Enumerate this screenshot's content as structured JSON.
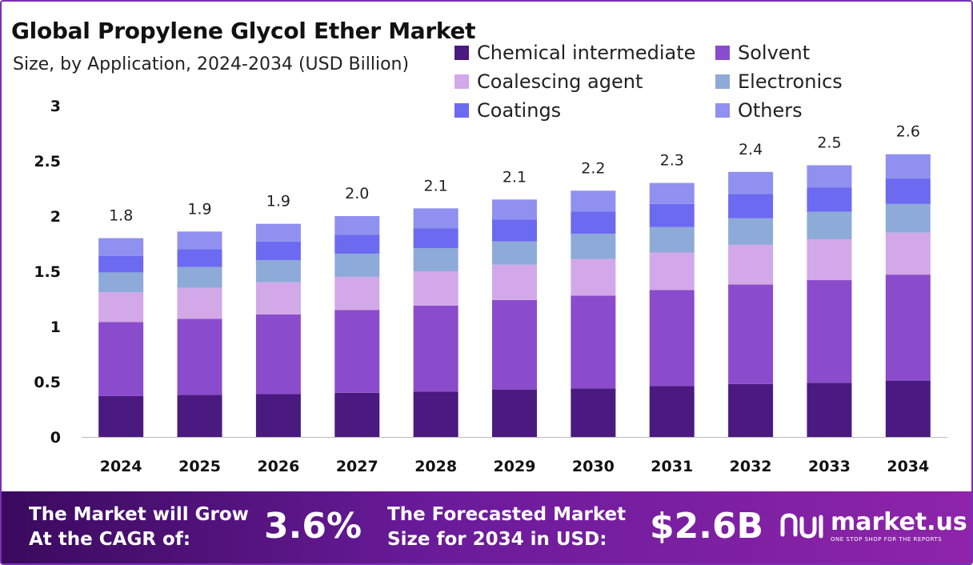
{
  "header": {
    "title": "Global Propylene Glycol Ether Market",
    "subtitle": "Size, by Application, 2024-2034 (USD Billion)"
  },
  "chart_data": {
    "type": "bar",
    "stacked": true,
    "title": "Global Propylene Glycol Ether Market",
    "subtitle": "Size, by Application, 2024-2034 (USD Billion)",
    "xlabel": "",
    "ylabel": "USD Billion",
    "ylim": [
      0,
      3
    ],
    "yticks": [
      "0",
      "0.5",
      "1",
      "1.5",
      "2",
      "2.5",
      "3"
    ],
    "ytick_values": [
      0,
      0.5,
      1,
      1.5,
      2,
      2.5,
      3
    ],
    "grid": false,
    "legend_position": "top-right",
    "categories": [
      "2024",
      "2025",
      "2026",
      "2027",
      "2028",
      "2029",
      "2030",
      "2031",
      "2032",
      "2033",
      "2034"
    ],
    "totals": [
      1.8,
      1.9,
      1.9,
      2.0,
      2.1,
      2.1,
      2.2,
      2.3,
      2.4,
      2.5,
      2.6
    ],
    "total_labels": [
      "1.8",
      "1.9",
      "1.9",
      "2.0",
      "2.1",
      "2.1",
      "2.2",
      "2.3",
      "2.4",
      "2.5",
      "2.6"
    ],
    "series": [
      {
        "name": "Chemical intermediate",
        "color": "#4a1a80",
        "values": [
          0.37,
          0.38,
          0.39,
          0.4,
          0.41,
          0.43,
          0.44,
          0.46,
          0.48,
          0.49,
          0.51
        ]
      },
      {
        "name": "Solvent",
        "color": "#8a4ccc",
        "values": [
          0.67,
          0.69,
          0.72,
          0.75,
          0.78,
          0.81,
          0.84,
          0.87,
          0.9,
          0.93,
          0.96
        ]
      },
      {
        "name": "Coalescing agent",
        "color": "#d2a8e8",
        "values": [
          0.27,
          0.28,
          0.29,
          0.3,
          0.31,
          0.32,
          0.33,
          0.34,
          0.36,
          0.37,
          0.38
        ]
      },
      {
        "name": "Electronics",
        "color": "#8eaad8",
        "values": [
          0.18,
          0.19,
          0.2,
          0.21,
          0.21,
          0.21,
          0.23,
          0.23,
          0.24,
          0.25,
          0.26
        ]
      },
      {
        "name": "Coatings",
        "color": "#6c6af0",
        "values": [
          0.15,
          0.16,
          0.17,
          0.17,
          0.18,
          0.2,
          0.2,
          0.21,
          0.22,
          0.22,
          0.23
        ]
      },
      {
        "name": "Others",
        "color": "#9090f0",
        "values": [
          0.16,
          0.16,
          0.16,
          0.17,
          0.18,
          0.18,
          0.19,
          0.19,
          0.2,
          0.2,
          0.22
        ]
      }
    ]
  },
  "footer": {
    "cagr_text_line1": "The Market will Grow",
    "cagr_text_line2": "At the CAGR of:",
    "cagr_value": "3.6%",
    "forecast_text_line1": "The Forecasted Market",
    "forecast_text_line2": "Size for 2034 in USD:",
    "forecast_value": "$2.6B",
    "logo_name": "market.us",
    "logo_tagline": "ONE STOP SHOP FOR THE REPORTS"
  },
  "colors": {
    "border": "#7a2fb5",
    "footer_start": "#3a0a5e",
    "footer_end": "#8e24aa"
  }
}
